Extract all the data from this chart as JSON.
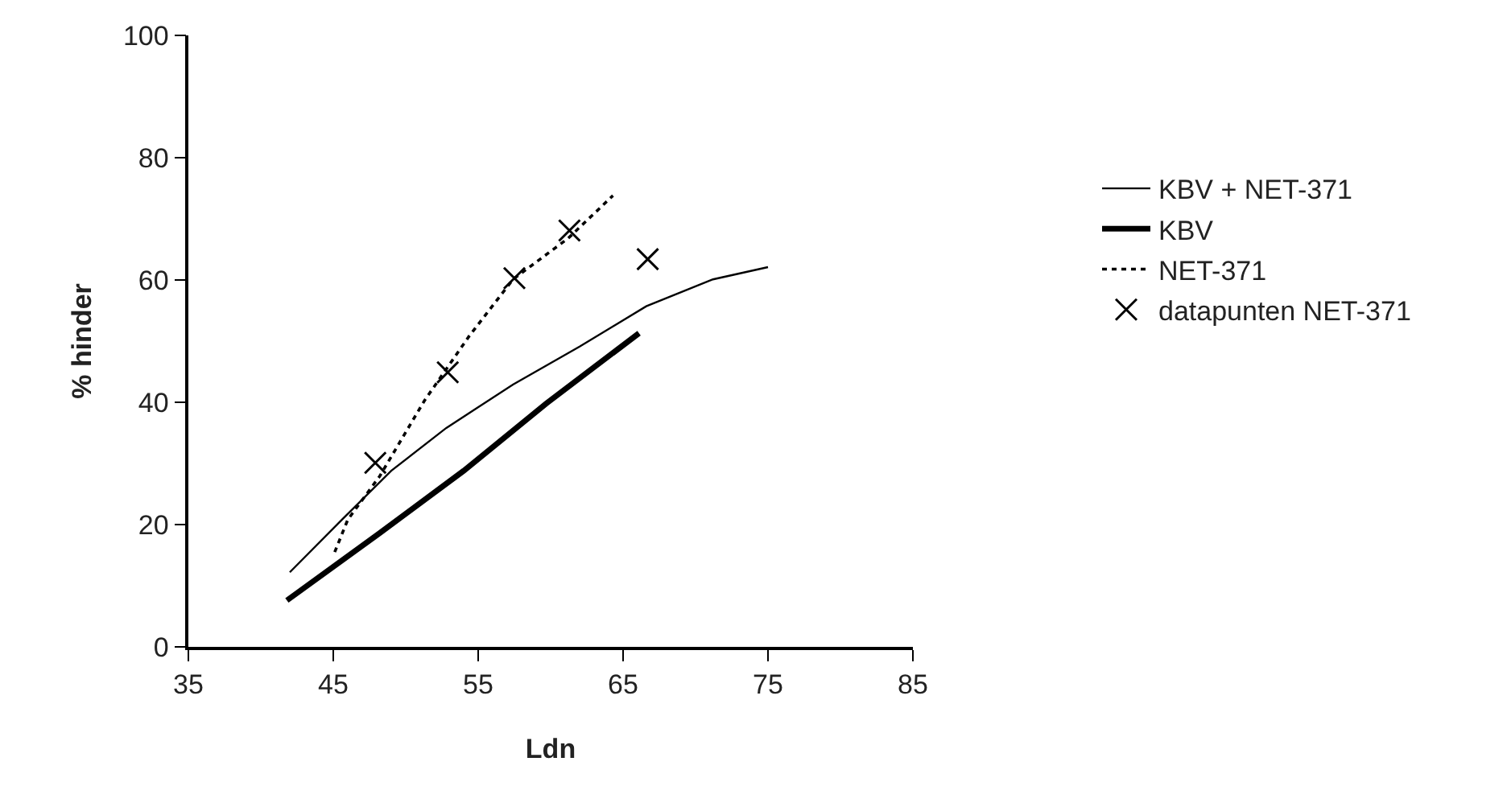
{
  "chart_data": {
    "type": "line",
    "xlabel": "Ldn",
    "ylabel": "% hinder",
    "xlim": [
      35,
      85
    ],
    "xticks": [
      35,
      45,
      55,
      65,
      75,
      85
    ],
    "ylim": [
      0,
      100
    ],
    "yticks": [
      0,
      20,
      40,
      60,
      80,
      100
    ],
    "legend": "right",
    "series": [
      {
        "name": "KBV + NET-371",
        "color": "#000000",
        "line_style": "solid",
        "x": [
          42.0,
          45.6,
          49.0,
          52.8,
          57.4,
          62.0,
          66.6,
          71.2,
          75.0
        ],
        "values": [
          12.2,
          20.8,
          28.8,
          35.8,
          42.9,
          49.1,
          55.7,
          60.1,
          62.1
        ]
      },
      {
        "name": "KBV",
        "color": "#000000",
        "line_style": "solid",
        "x": [
          41.8,
          48.2,
          54.0,
          59.7,
          66.1
        ],
        "values": [
          7.6,
          18.6,
          28.8,
          39.8,
          51.3
        ]
      },
      {
        "name": "NET-371",
        "color": "#000000",
        "line_style": "dotted",
        "x": [
          45.1,
          46.0,
          48.2,
          51.3,
          54.4,
          57.4,
          61.2,
          64.3
        ],
        "values": [
          15.5,
          20.8,
          27.9,
          40.3,
          50.9,
          60.1,
          66.8,
          73.8
        ]
      },
      {
        "name": "datapunten NET-371",
        "type": "scatter",
        "marker": "cross",
        "color": "#000000",
        "x": [
          47.9,
          52.9,
          57.5,
          61.3,
          66.7
        ],
        "values": [
          30.1,
          44.9,
          60.3,
          68.1,
          63.4
        ]
      }
    ]
  }
}
